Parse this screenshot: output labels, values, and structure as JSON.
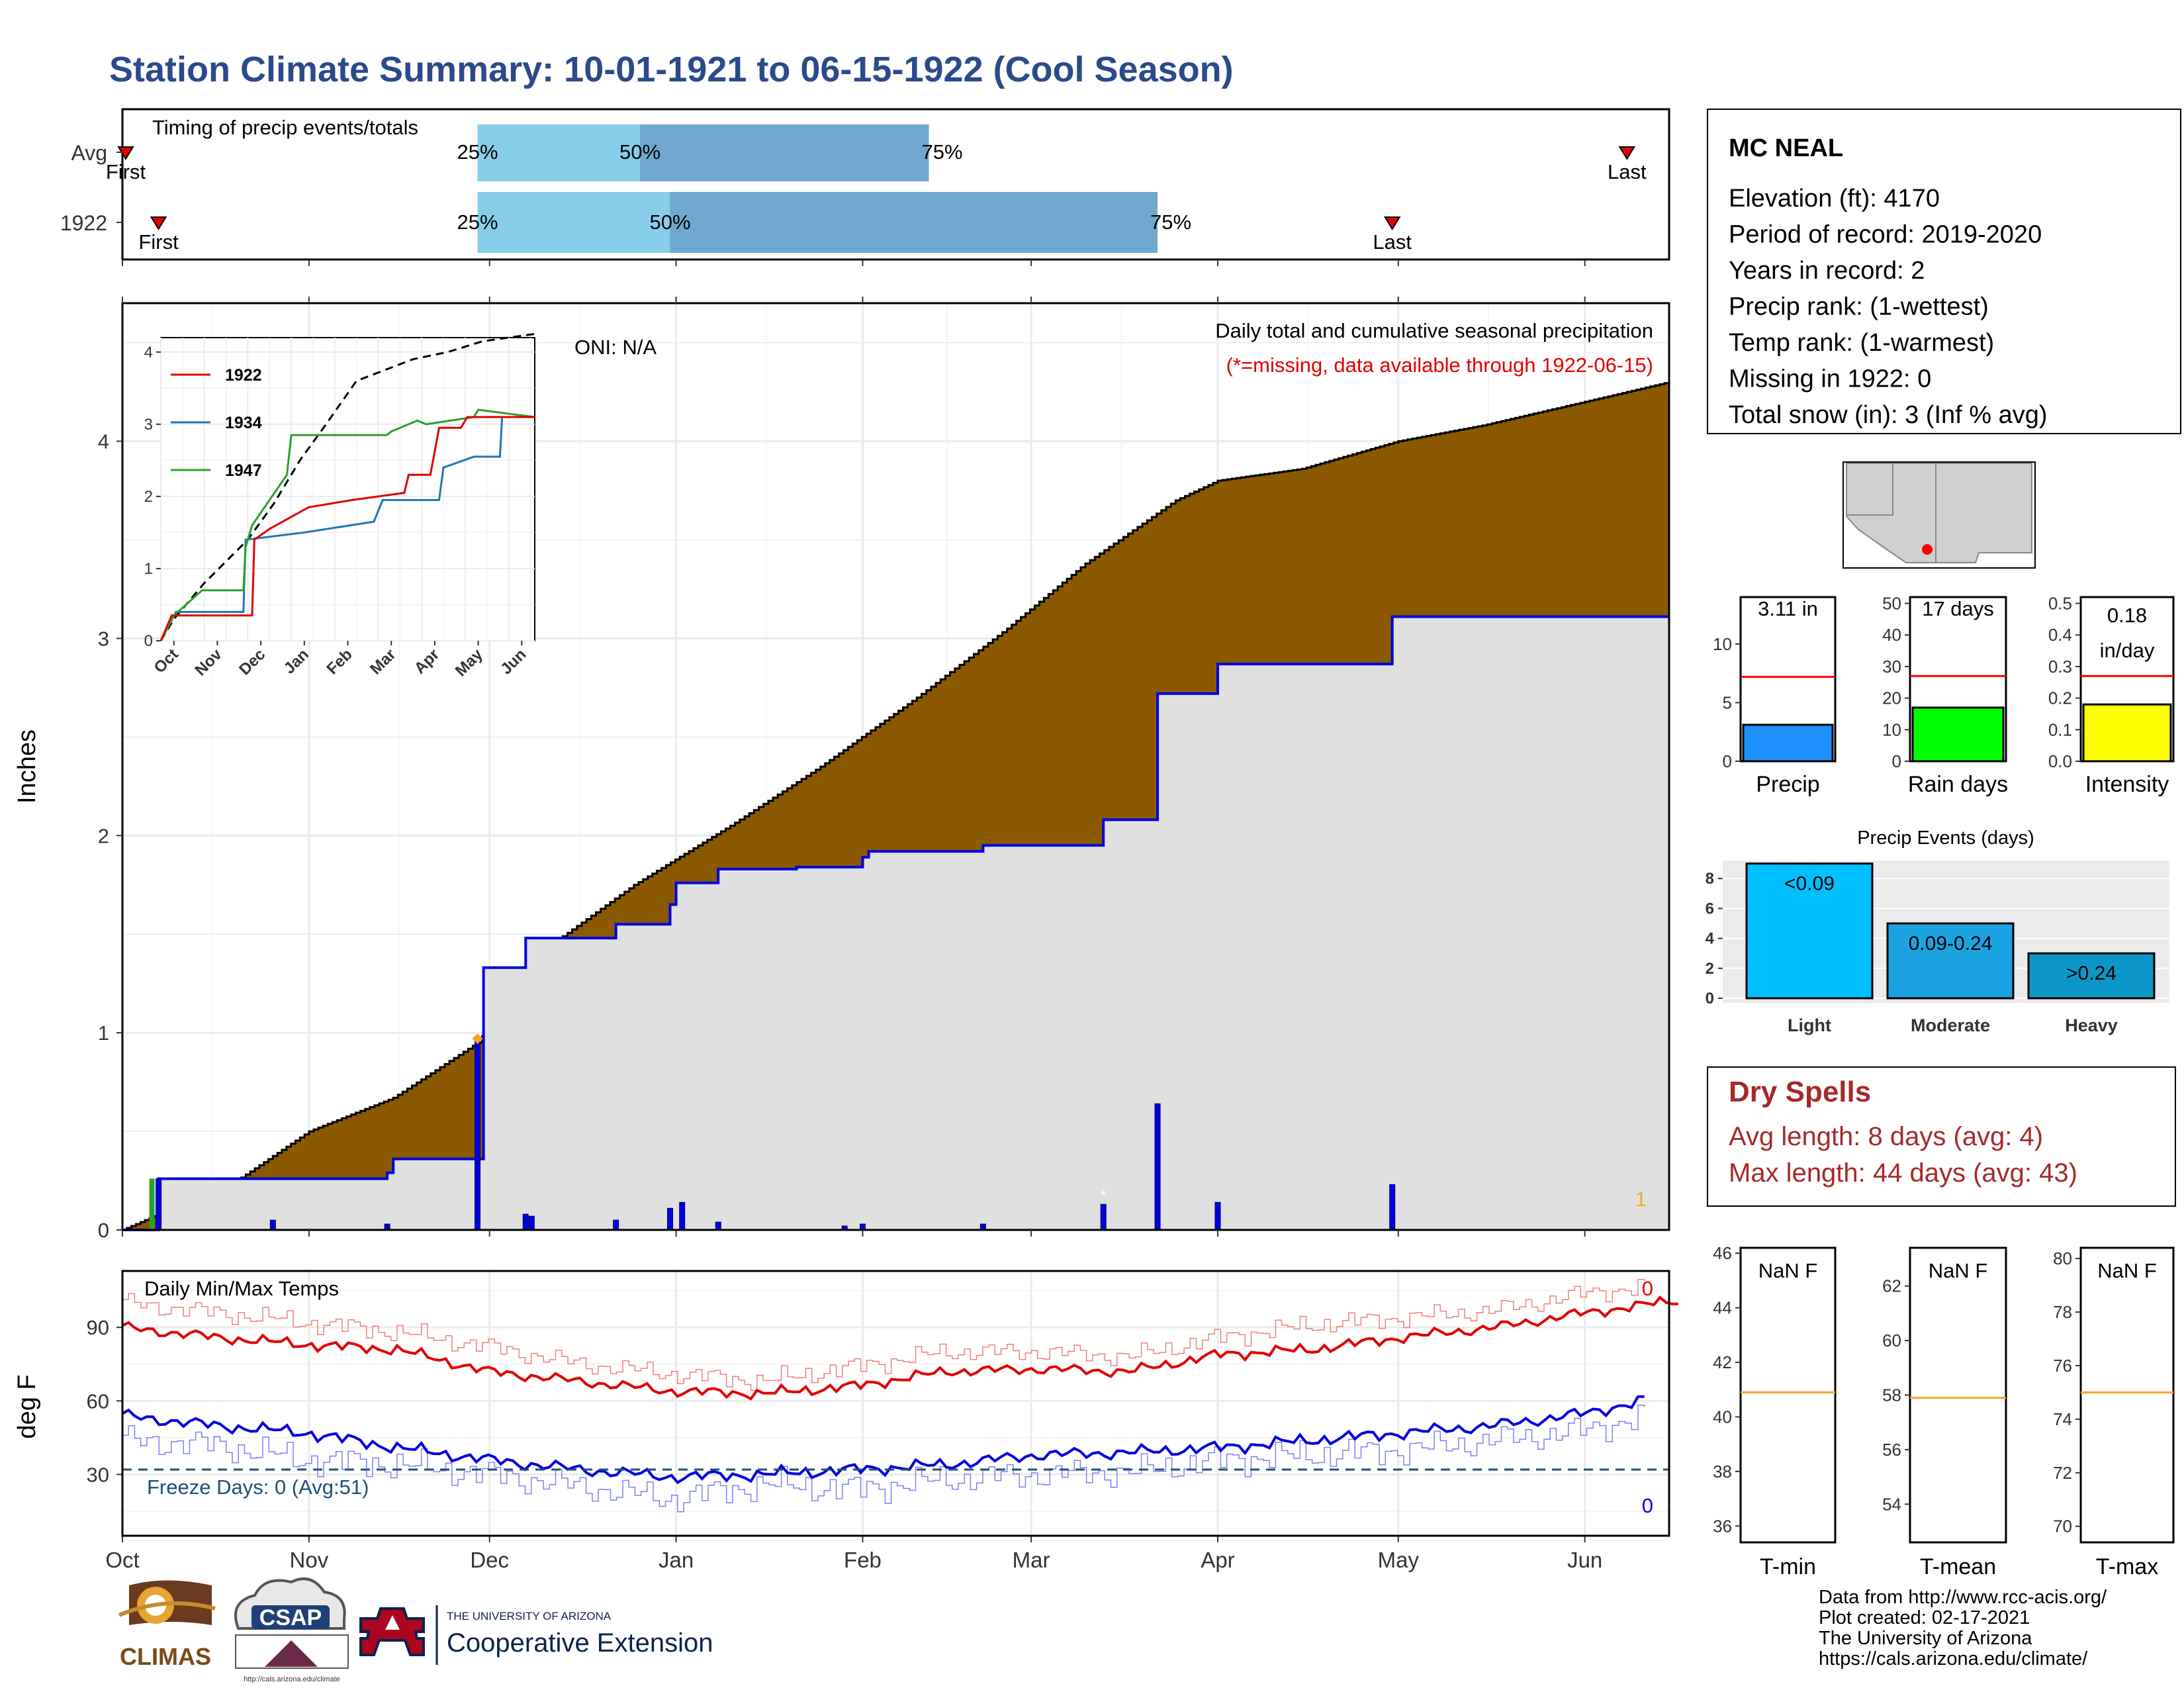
{
  "title": "Station Climate Summary: 10-01-1921 to 06-15-1922 (Cool Season)",
  "colors": {
    "title": "#2b4a8b",
    "brown": "#8b5a00",
    "grey_fill": "#e0e0e0",
    "blue_line": "#0000e0",
    "red": "#e00000",
    "light_blue": "#87ceeb",
    "mid_blue": "#6fa8cf",
    "dry_spell": "#a52a2a",
    "freeze": "#1f4e79",
    "orange": "#f5a623"
  },
  "timing_panel": {
    "title": "Timing of precip events/totals",
    "rows": [
      {
        "label": "Avg",
        "first_label": "First",
        "last_label": "Last",
        "first": "1921-10-01",
        "last": "1922-06-08",
        "p25": "1921-11-29",
        "p50": "1921-12-26",
        "p75": "1922-02-12",
        "p25_label": "25%",
        "p50_label": "50%",
        "p75_label": "75%"
      },
      {
        "label": "1922",
        "first_label": "First",
        "last_label": "Last",
        "first": "1921-10-07",
        "last": "1922-04-30",
        "p25": "1921-11-29",
        "p50": "1921-12-31",
        "p75": "1922-03-22",
        "p25_label": "25%",
        "p50_label": "50%",
        "p75_label": "75%"
      }
    ]
  },
  "main_panel": {
    "ylabel": "Inches",
    "oni": "ONI: N/A",
    "caption": "Daily total and cumulative seasonal precipitation",
    "missing_note": "(*=missing, data available through 1922-06-15)",
    "missing_count": "1",
    "ylim": [
      0,
      4.7
    ],
    "yticks": [
      0,
      1,
      2,
      3,
      4
    ],
    "month_labels": [
      "Oct",
      "Nov",
      "Dec",
      "Jan",
      "Feb",
      "Mar",
      "Apr",
      "May",
      "Jun"
    ],
    "average_cumulative": [
      [
        "1921-10-01",
        0.0
      ],
      [
        "1921-10-10",
        0.12
      ],
      [
        "1921-10-20",
        0.25
      ],
      [
        "1921-11-01",
        0.5
      ],
      [
        "1921-11-15",
        0.67
      ],
      [
        "1921-11-29",
        0.95
      ],
      [
        "1921-12-10",
        1.42
      ],
      [
        "1921-12-25",
        1.75
      ],
      [
        "1922-01-10",
        2.05
      ],
      [
        "1922-01-25",
        2.35
      ],
      [
        "1922-02-10",
        2.7
      ],
      [
        "1922-02-25",
        3.05
      ],
      [
        "1922-03-10",
        3.38
      ],
      [
        "1922-03-25",
        3.7
      ],
      [
        "1922-04-01",
        3.8
      ],
      [
        "1922-04-15",
        3.86
      ],
      [
        "1922-05-01",
        4.0
      ],
      [
        "1922-05-15",
        4.08
      ],
      [
        "1922-06-01",
        4.2
      ],
      [
        "1922-06-15",
        4.3
      ]
    ],
    "cumulative_1922": [
      [
        "1921-10-01",
        0.0
      ],
      [
        "1921-10-07",
        0.26
      ],
      [
        "1921-11-14",
        0.29
      ],
      [
        "1921-11-15",
        0.36
      ],
      [
        "1921-11-29",
        0.36
      ],
      [
        "1921-11-30",
        1.33
      ],
      [
        "1921-12-07",
        1.48
      ],
      [
        "1921-12-22",
        1.55
      ],
      [
        "1921-12-31",
        1.65
      ],
      [
        "1922-01-01",
        1.76
      ],
      [
        "1922-01-08",
        1.83
      ],
      [
        "1922-01-21",
        1.84
      ],
      [
        "1922-02-01",
        1.89
      ],
      [
        "1922-02-02",
        1.92
      ],
      [
        "1922-02-21",
        1.95
      ],
      [
        "1922-03-13",
        2.08
      ],
      [
        "1922-03-22",
        2.72
      ],
      [
        "1922-04-01",
        2.87
      ],
      [
        "1922-04-30",
        3.11
      ],
      [
        "1922-06-15",
        3.11
      ]
    ],
    "daily_precip": [
      [
        "1921-10-07",
        0.26
      ],
      [
        "1921-10-26",
        0.05
      ],
      [
        "1921-11-14",
        0.03
      ],
      [
        "1921-11-29",
        0.97
      ],
      [
        "1921-12-07",
        0.08
      ],
      [
        "1921-12-08",
        0.07
      ],
      [
        "1921-12-22",
        0.05
      ],
      [
        "1921-12-31",
        0.11
      ],
      [
        "1922-01-02",
        0.14
      ],
      [
        "1922-01-08",
        0.04
      ],
      [
        "1922-01-29",
        0.02
      ],
      [
        "1922-02-01",
        0.03
      ],
      [
        "1922-02-21",
        0.03
      ],
      [
        "1922-03-13",
        0.13
      ],
      [
        "1922-03-22",
        0.64
      ],
      [
        "1922-04-01",
        0.14
      ],
      [
        "1922-04-30",
        0.23
      ]
    ]
  },
  "inset": {
    "legend": [
      "1922",
      "1934",
      "1947"
    ],
    "series_colors": [
      "#e00000",
      "#1f77b4",
      "#2ca02c"
    ],
    "ylim": [
      0,
      4.2
    ],
    "yticks": [
      0,
      1,
      2,
      3,
      4
    ],
    "month_labels": [
      "Oct",
      "Nov",
      "Dec",
      "Jan",
      "Feb",
      "Mar",
      "Apr",
      "May",
      "Jun"
    ],
    "avg": [
      [
        0,
        0
      ],
      [
        0.3,
        0.3
      ],
      [
        1,
        0.8
      ],
      [
        2,
        1.4
      ],
      [
        2.6,
        1.9
      ],
      [
        3.2,
        2.5
      ],
      [
        3.8,
        3.0
      ],
      [
        4.5,
        3.6
      ],
      [
        5.8,
        3.9
      ],
      [
        6.6,
        4.0
      ],
      [
        7.4,
        4.15
      ],
      [
        8.6,
        4.25
      ]
    ],
    "s1922": [
      [
        0,
        0
      ],
      [
        0.25,
        0.35
      ],
      [
        2.1,
        0.35
      ],
      [
        2.15,
        1.4
      ],
      [
        2.5,
        1.55
      ],
      [
        3.4,
        1.85
      ],
      [
        4.4,
        1.95
      ],
      [
        5.6,
        2.05
      ],
      [
        5.7,
        2.3
      ],
      [
        6.2,
        2.3
      ],
      [
        6.4,
        2.95
      ],
      [
        6.9,
        2.95
      ],
      [
        7.05,
        3.1
      ],
      [
        8.6,
        3.1
      ]
    ],
    "s1934": [
      [
        0,
        0
      ],
      [
        0.35,
        0.4
      ],
      [
        1.9,
        0.4
      ],
      [
        1.95,
        1.4
      ],
      [
        3.3,
        1.5
      ],
      [
        4.9,
        1.65
      ],
      [
        5.1,
        1.95
      ],
      [
        6.4,
        1.95
      ],
      [
        6.5,
        2.4
      ],
      [
        7.2,
        2.55
      ],
      [
        7.8,
        2.55
      ],
      [
        7.85,
        3.1
      ],
      [
        8.6,
        3.1
      ]
    ],
    "s1947": [
      [
        0,
        0
      ],
      [
        0.3,
        0.35
      ],
      [
        0.95,
        0.7
      ],
      [
        1.9,
        0.7
      ],
      [
        1.95,
        1.3
      ],
      [
        2.1,
        1.6
      ],
      [
        2.9,
        2.3
      ],
      [
        3.0,
        2.85
      ],
      [
        5.2,
        2.85
      ],
      [
        5.3,
        2.9
      ],
      [
        5.9,
        3.05
      ],
      [
        6.1,
        3.0
      ],
      [
        7.2,
        3.1
      ],
      [
        7.3,
        3.2
      ],
      [
        8.6,
        3.1
      ]
    ]
  },
  "temp_panel": {
    "title": "Daily Min/Max Temps",
    "ylabel": "deg F",
    "yticks": [
      30,
      60,
      90
    ],
    "ylim": [
      5,
      113
    ],
    "freeze_line": 32,
    "freeze_text": "Freeze Days: 0 (Avg:51)",
    "max_count": "0",
    "min_count": "0",
    "x_labels": [
      "Oct",
      "Nov",
      "Dec",
      "Jan",
      "Feb",
      "Mar",
      "Apr",
      "May",
      "Jun"
    ],
    "avg_max": [
      [
        0,
        90
      ],
      [
        0.5,
        86
      ],
      [
        1.0,
        83
      ],
      [
        1.5,
        81
      ],
      [
        2.0,
        72
      ],
      [
        2.5,
        68
      ],
      [
        3.0,
        64
      ],
      [
        3.5,
        63
      ],
      [
        4.0,
        66
      ],
      [
        4.5,
        72
      ],
      [
        5.0,
        73
      ],
      [
        5.5,
        72
      ],
      [
        6.0,
        79
      ],
      [
        6.5,
        81
      ],
      [
        7.0,
        86
      ],
      [
        7.5,
        90
      ],
      [
        8.0,
        96
      ],
      [
        8.5,
        101
      ],
      [
        8.35,
        100
      ]
    ],
    "avg_min": [
      [
        0,
        54
      ],
      [
        0.5,
        50
      ],
      [
        1.0,
        47
      ],
      [
        1.5,
        41
      ],
      [
        2.0,
        36
      ],
      [
        2.5,
        32
      ],
      [
        3.0,
        29
      ],
      [
        3.5,
        30
      ],
      [
        4.0,
        32
      ],
      [
        4.5,
        34
      ],
      [
        5.0,
        38
      ],
      [
        5.5,
        39
      ],
      [
        6.0,
        41
      ],
      [
        6.5,
        44
      ],
      [
        7.0,
        47
      ],
      [
        7.5,
        50
      ],
      [
        8.0,
        55
      ],
      [
        8.35,
        61
      ]
    ],
    "obs_max": [
      [
        0,
        100
      ],
      [
        0.5,
        96
      ],
      [
        1.0,
        92
      ],
      [
        1.5,
        88
      ],
      [
        2.0,
        82
      ],
      [
        2.5,
        75
      ],
      [
        3.0,
        71
      ],
      [
        3.5,
        68
      ],
      [
        4.0,
        74
      ],
      [
        4.5,
        80
      ],
      [
        5.0,
        80
      ],
      [
        5.5,
        78
      ],
      [
        6.0,
        86
      ],
      [
        6.5,
        91
      ],
      [
        7.0,
        94
      ],
      [
        7.5,
        97
      ],
      [
        8.0,
        104
      ],
      [
        8.35,
        107
      ]
    ],
    "obs_min": [
      [
        0,
        44
      ],
      [
        0.5,
        42
      ],
      [
        1.0,
        36
      ],
      [
        1.5,
        34
      ],
      [
        2.0,
        30
      ],
      [
        2.5,
        25
      ],
      [
        3.0,
        20
      ],
      [
        3.5,
        26
      ],
      [
        4.0,
        24
      ],
      [
        4.5,
        28
      ],
      [
        5.0,
        30
      ],
      [
        5.5,
        31
      ],
      [
        6.0,
        36
      ],
      [
        6.5,
        38
      ],
      [
        7.0,
        40
      ],
      [
        7.5,
        44
      ],
      [
        8.0,
        48
      ],
      [
        8.35,
        55
      ]
    ]
  },
  "station_info": {
    "name": "MC NEAL",
    "lines": [
      "Elevation (ft): 4170",
      "Period of record: 2019-2020",
      "Years in record: 2",
      "Precip rank:  (1-wettest)",
      "Temp rank:  (1-warmest)",
      "Missing in 1922: 0",
      "Total snow (in): 3 (Inf % avg)"
    ]
  },
  "mini_bars": [
    {
      "label": "Precip",
      "value": 3.11,
      "value_label": "3.11 in",
      "avg": 7.2,
      "ylim": [
        0,
        14
      ],
      "yticks": [
        0,
        5,
        10
      ],
      "color": "#1e90ff"
    },
    {
      "label": "Rain days",
      "value": 17,
      "value_label": "17 days",
      "avg": 27,
      "ylim": [
        0,
        52
      ],
      "yticks": [
        0,
        10,
        20,
        30,
        40,
        50
      ],
      "color": "#00ff00"
    },
    {
      "label": "Intensity",
      "value": 0.18,
      "value_label": "0.18",
      "value_label2": "in/day",
      "avg": 0.27,
      "ylim": [
        0,
        0.52
      ],
      "yticks": [
        0.0,
        0.1,
        0.2,
        0.3,
        0.4,
        0.5
      ],
      "color": "#ffff00"
    }
  ],
  "precip_events": {
    "title": "Precip Events (days)",
    "categories": [
      "Light",
      "Moderate",
      "Heavy"
    ],
    "values": [
      9,
      5,
      3
    ],
    "bar_labels": [
      "<0.09",
      "0.09-0.24",
      ">0.24"
    ],
    "colors": [
      "#00bfff",
      "#1aa3e0",
      "#0b96c8"
    ],
    "ylim": [
      0,
      9.2
    ],
    "yticks": [
      0,
      2,
      4,
      6,
      8
    ]
  },
  "dry_spells": {
    "title": "Dry Spells",
    "avg_line": "Avg length: 8 days (avg: 4)",
    "max_line": "Max length: 44 days (avg: 43)"
  },
  "temp_boxes": [
    {
      "label": "T-min",
      "value_label": "NaN F",
      "yticks": [
        36,
        38,
        40,
        42,
        44,
        46
      ],
      "ylim": [
        35.4,
        46.2
      ],
      "avg": 40.9
    },
    {
      "label": "T-mean",
      "value_label": "NaN F",
      "yticks": [
        54,
        56,
        58,
        60,
        62
      ],
      "ylim": [
        52.6,
        63.4
      ],
      "avg": 57.9
    },
    {
      "label": "T-max",
      "value_label": "NaN F",
      "yticks": [
        70,
        72,
        74,
        76,
        78,
        80
      ],
      "ylim": [
        69.4,
        80.4
      ],
      "avg": 75.0
    }
  ],
  "footer": {
    "lines": [
      "Data from http://www.rcc-acis.org/",
      "Plot created: 02-17-2021",
      "The University of Arizona",
      "https://cals.arizona.edu/climate/"
    ],
    "logos": {
      "climas": "CLIMAS",
      "csap": "CSAP",
      "csap_url": "http://cals.arizona.edu/climate",
      "ua_small": "THE UNIVERSITY OF ARIZONA",
      "ua_big": "Cooperative Extension"
    }
  }
}
